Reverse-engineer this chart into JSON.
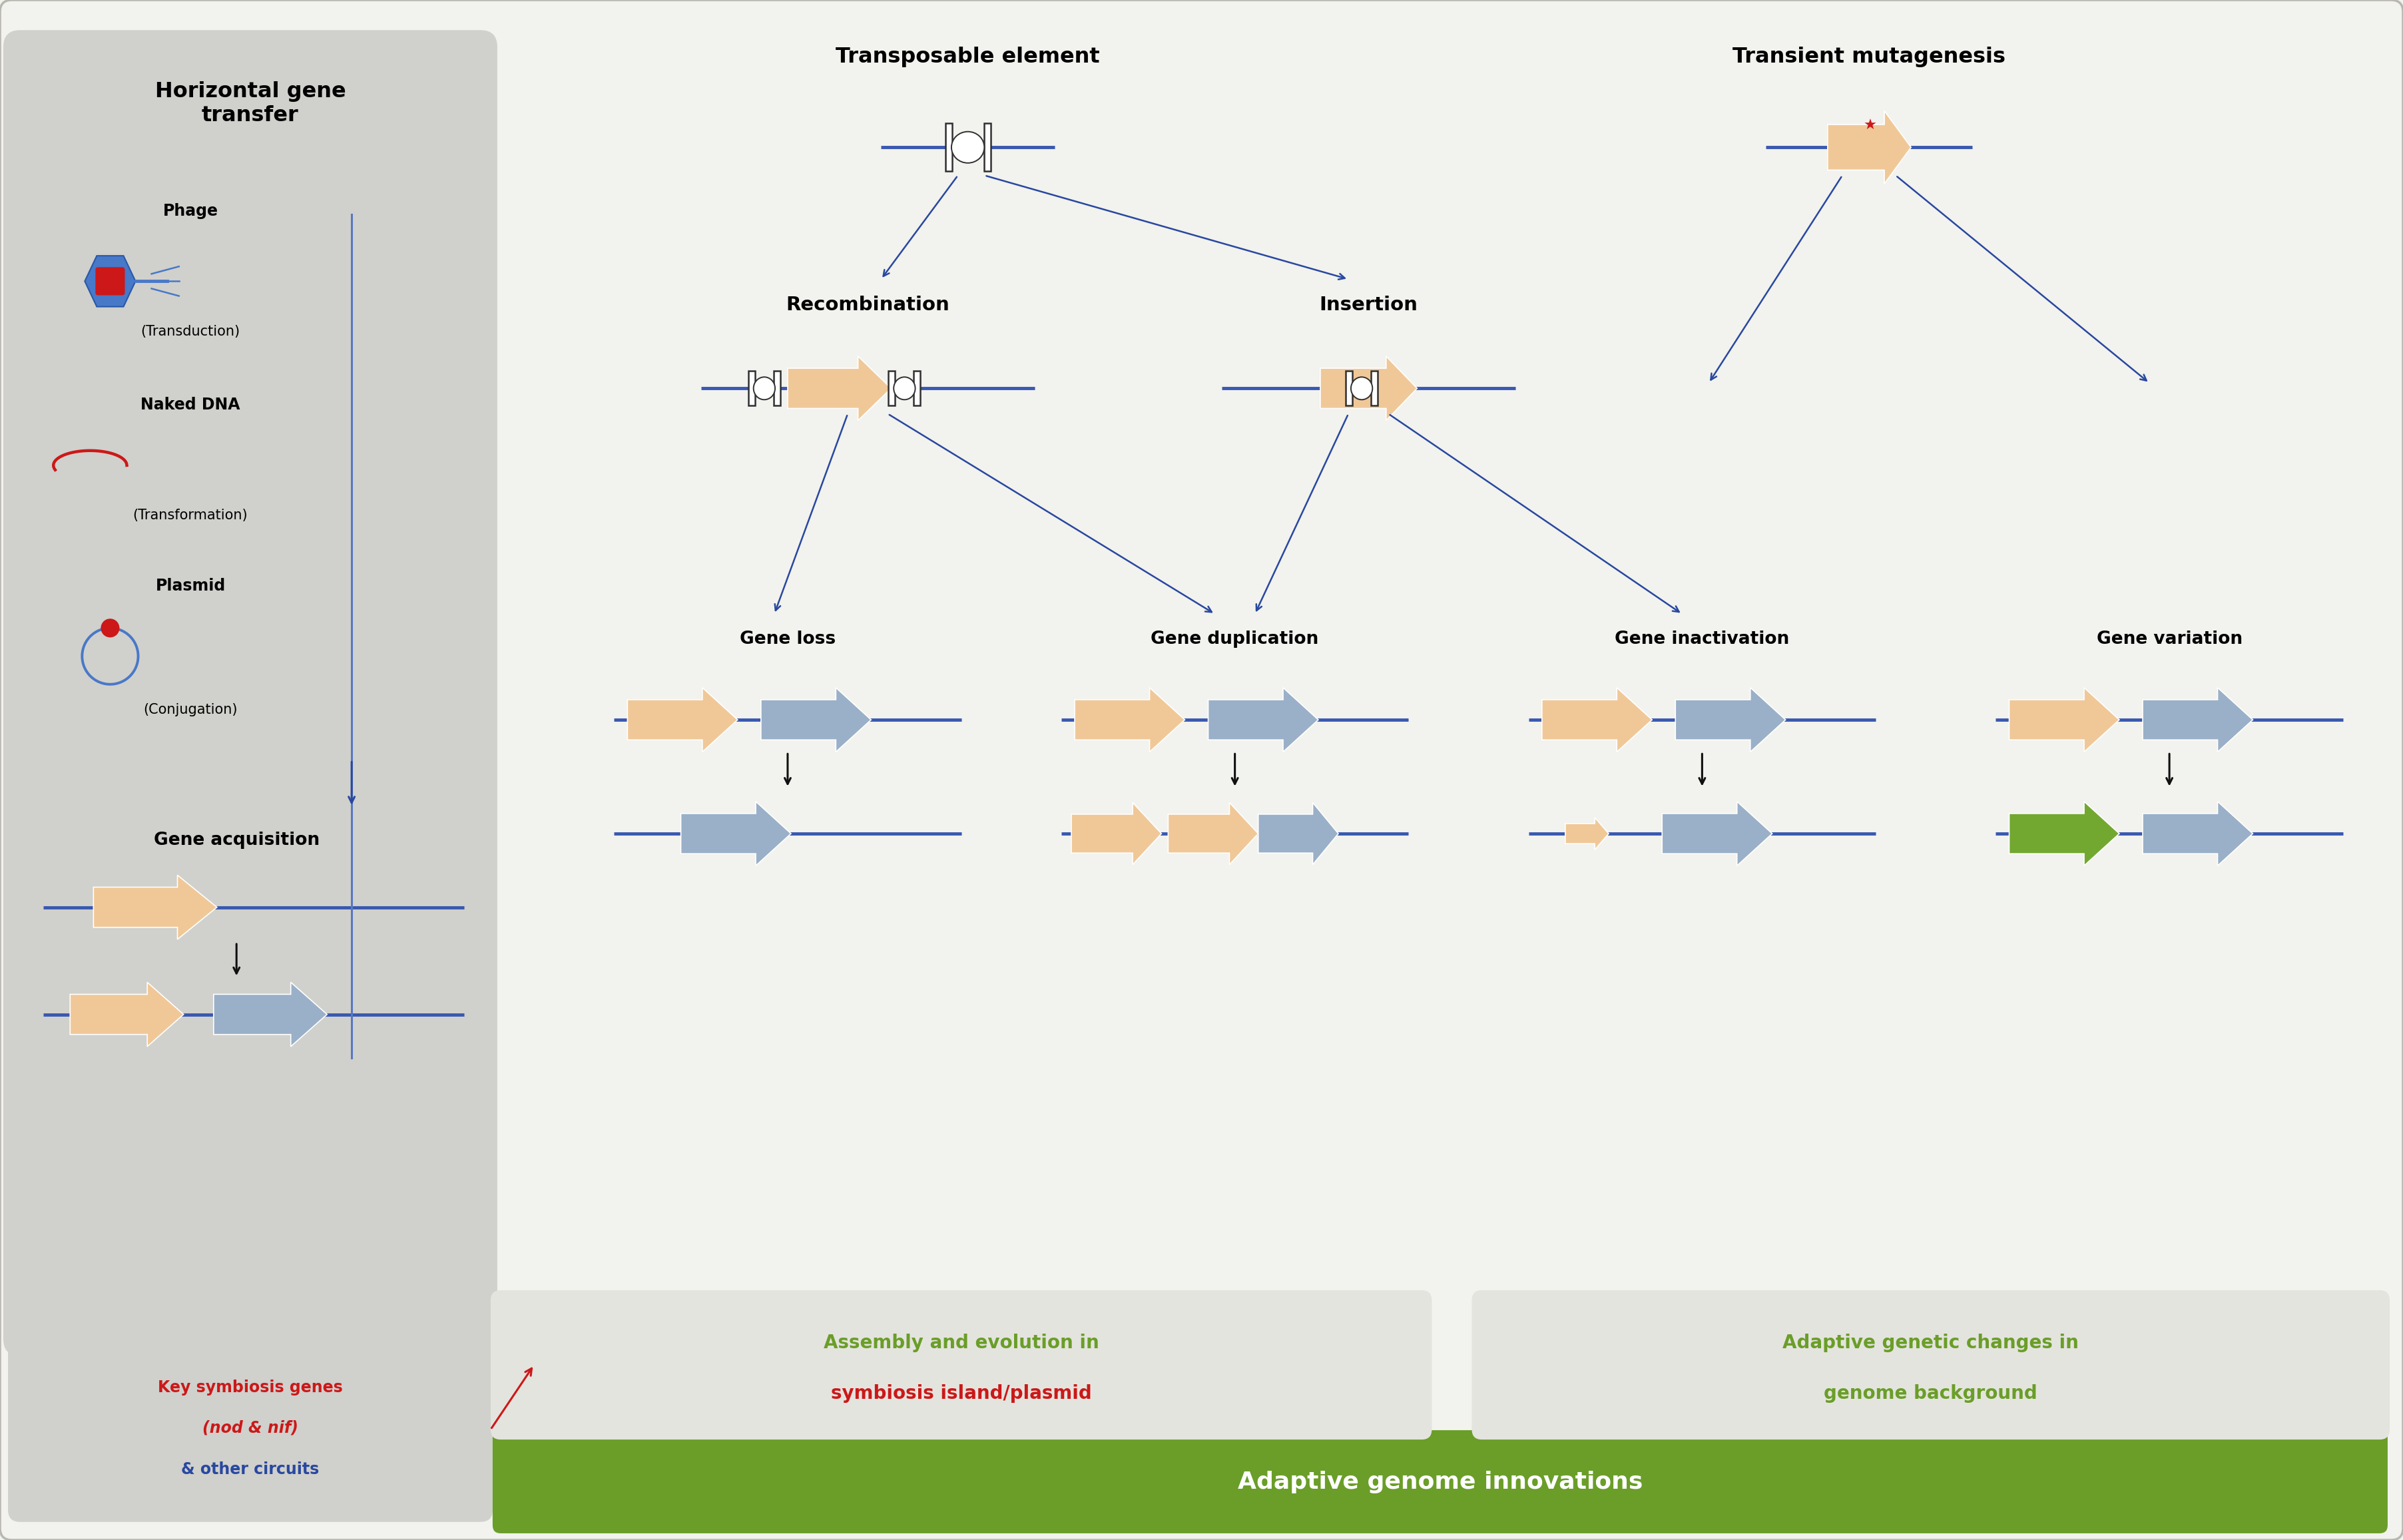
{
  "bg_color": "#f2f2ee",
  "left_box_color": "#d0d0cc",
  "bottom_box_color": "#e4e4de",
  "gene_orange": "#f0c898",
  "gene_blue": "#9ab0c8",
  "gene_green": "#72a830",
  "arrow_blue": "#2848a0",
  "green_bar_color": "#6a9e28",
  "title_hgt": "Horizontal gene\ntransfer",
  "title_te": "Transposable element",
  "title_tm": "Transient mutagenesis",
  "label_recomb": "Recombination",
  "label_insert": "Insertion",
  "label_gene_acq": "Gene acquisition",
  "label_gene_loss": "Gene loss",
  "label_gene_dup": "Gene duplication",
  "label_gene_inact": "Gene inactivation",
  "label_gene_var": "Gene variation",
  "bottom_left_text1": "Key symbiosis genes",
  "bottom_left_text2": "(nod & nif)",
  "bottom_left_text3": "& other circuits",
  "bottom_mid_text1": "Assembly and evolution in",
  "bottom_mid_text2": "symbiosis island/plasmid",
  "bottom_right_text1": "Adaptive genetic changes in",
  "bottom_right_text2": "genome background",
  "bottom_bar_text": "Adaptive genome innovations",
  "phage_label": "Phage",
  "phage_sub": "(Transduction)",
  "naked_label": "Naked DNA",
  "naked_sub": "(Transformation)",
  "plasmid_label": "Plasmid",
  "plasmid_sub": "(Conjugation)"
}
